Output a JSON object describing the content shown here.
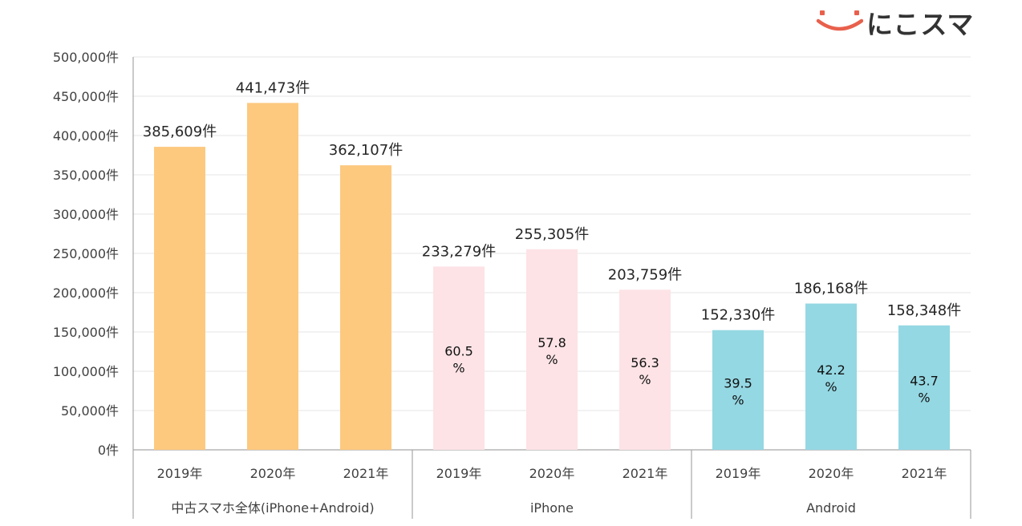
{
  "brand": {
    "logo_text": "にこスマ",
    "logo_icon": "smile-icon",
    "logo_color": "#e8604c"
  },
  "chart_data": {
    "type": "bar",
    "title": "",
    "xlabel": "",
    "ylabel": "",
    "ylim": [
      0,
      500000
    ],
    "grid": true,
    "y_ticks": [
      0,
      50000,
      100000,
      150000,
      200000,
      250000,
      300000,
      350000,
      400000,
      450000,
      500000
    ],
    "y_tick_labels": [
      "0件",
      "50,000件",
      "100,000件",
      "150,000件",
      "200,000件",
      "250,000件",
      "300,000件",
      "350,000件",
      "400,000件",
      "450,000件",
      "500,000件"
    ],
    "groups": [
      {
        "name": "中古スマホ全体(iPhone+Android)",
        "color": "#fdc97f",
        "bars": [
          {
            "year": "2019年",
            "value": 385609,
            "label": "385,609件"
          },
          {
            "year": "2020年",
            "value": 441473,
            "label": "441,473件"
          },
          {
            "year": "2021年",
            "value": 362107,
            "label": "362,107件"
          }
        ]
      },
      {
        "name": "iPhone",
        "color": "#fde3e6",
        "bars": [
          {
            "year": "2019年",
            "value": 233279,
            "label": "233,279件",
            "share": [
              "60.5",
              "%"
            ]
          },
          {
            "year": "2020年",
            "value": 255305,
            "label": "255,305件",
            "share": [
              "57.8",
              "%"
            ]
          },
          {
            "year": "2021年",
            "value": 203759,
            "label": "203,759件",
            "share": [
              "56.3",
              "%"
            ]
          }
        ]
      },
      {
        "name": "Android",
        "color": "#94d8e3",
        "bars": [
          {
            "year": "2019年",
            "value": 152330,
            "label": "152,330件",
            "share": [
              "39.5",
              "%"
            ]
          },
          {
            "year": "2020年",
            "value": 186168,
            "label": "186,168件",
            "share": [
              "42.2",
              "%"
            ]
          },
          {
            "year": "2021年",
            "value": 158348,
            "label": "158,348件",
            "share": [
              "43.7",
              "%"
            ]
          }
        ]
      }
    ]
  }
}
